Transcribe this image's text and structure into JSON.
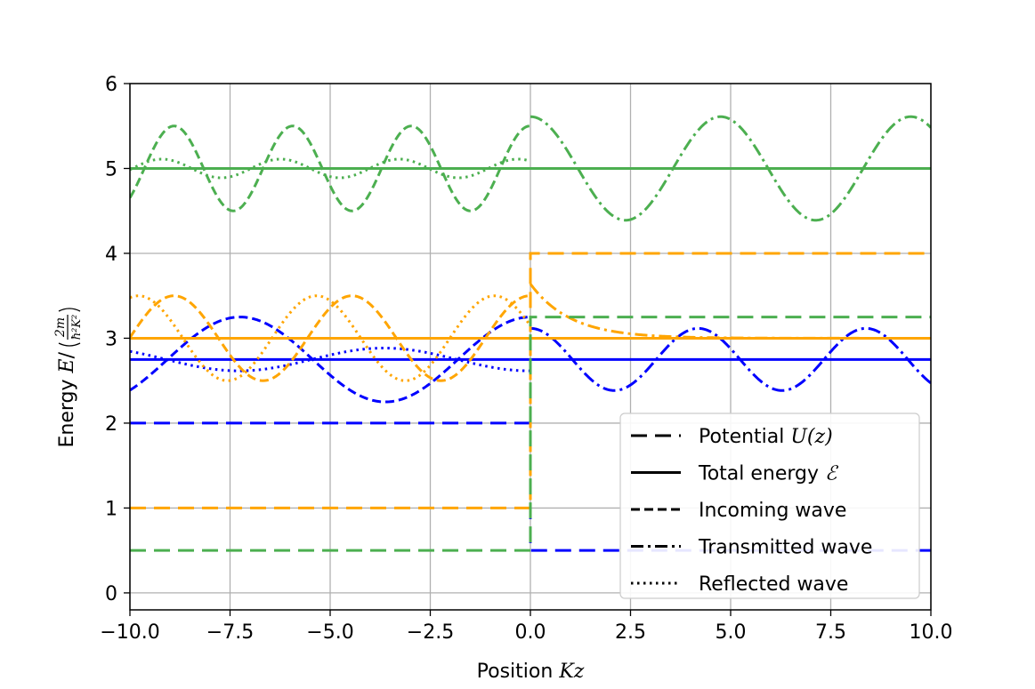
{
  "chart_data": {
    "type": "line",
    "xlabel": {
      "prefix": "Position ",
      "math": "Kz"
    },
    "ylabel": {
      "prefix": "Energy ",
      "math": "E",
      "fraction_num": "2m",
      "fraction_den": "ħ²K²"
    },
    "xlim": [
      -10.0,
      10.0
    ],
    "ylim": [
      -0.2,
      6.0
    ],
    "xticks": [
      -10.0,
      -7.5,
      -5.0,
      -2.5,
      0.0,
      2.5,
      5.0,
      7.5,
      10.0
    ],
    "xtick_labels": [
      "−10.0",
      "−7.5",
      "−5.0",
      "−2.5",
      "0.0",
      "2.5",
      "5.0",
      "7.5",
      "10.0"
    ],
    "yticks": [
      0,
      1,
      2,
      3,
      4,
      5,
      6
    ],
    "ytick_labels": [
      "0",
      "1",
      "2",
      "3",
      "4",
      "5",
      "6"
    ],
    "grid": true,
    "legend": {
      "placement": "lower right",
      "entries": [
        {
          "style": "longdash",
          "text": "Potential ",
          "math": "U(z)"
        },
        {
          "style": "solid",
          "text": "Total energy ",
          "math": "ℰ"
        },
        {
          "style": "dashed",
          "text": "Incoming wave",
          "math": ""
        },
        {
          "style": "dashdot",
          "text": "Transmitted wave",
          "math": ""
        },
        {
          "style": "dotted",
          "text": "Reflected wave",
          "math": ""
        }
      ]
    },
    "colors": {
      "blue": "#0000ff",
      "orange": "#ffa500",
      "green": "#4caf50",
      "grid": "#b0b0b0"
    },
    "series": [
      {
        "color": "blue",
        "potential": {
          "left": 2.0,
          "right": 0.5
        },
        "energy": 2.75,
        "incoming": {
          "amplitude": 0.5,
          "k": 0.866,
          "x_max_at": -7.25
        },
        "reflected": {
          "amplitude": 0.134,
          "k": 0.866,
          "x_max_at": -3.65
        },
        "transmitted": {
          "amplitude": 0.366,
          "k": 1.5,
          "x_max_at": 0.0
        }
      },
      {
        "color": "orange",
        "potential": {
          "left": 1.0,
          "right": 4.0
        },
        "energy": 3.0,
        "incoming": {
          "amplitude": 0.5,
          "k": 1.414,
          "x_max_at": -8.9
        },
        "reflected": {
          "amplitude": 0.5,
          "k": 1.414,
          "x_max_at": -0.9
        },
        "transmitted_evanescent": {
          "value_at_zero": 0.64,
          "kappa": 1.0
        }
      },
      {
        "color": "green",
        "potential": {
          "left": 0.5,
          "right": 3.25
        },
        "energy": 5.0,
        "incoming": {
          "amplitude": 0.5,
          "k": 2.121,
          "x_max_at": -8.9
        },
        "reflected": {
          "amplitude": 0.11,
          "k": 2.121,
          "x_max_at": -9.2
        },
        "transmitted": {
          "amplitude": 0.61,
          "k": 1.323,
          "x_max_at": 0.0
        }
      }
    ]
  }
}
